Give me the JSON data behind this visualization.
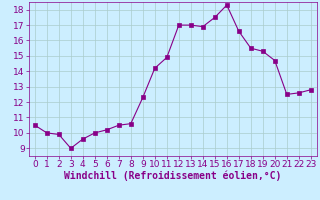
{
  "x": [
    0,
    1,
    2,
    3,
    4,
    5,
    6,
    7,
    8,
    9,
    10,
    11,
    12,
    13,
    14,
    15,
    16,
    17,
    18,
    19,
    20,
    21,
    22,
    23
  ],
  "y": [
    10.5,
    10.0,
    9.9,
    9.0,
    9.6,
    10.0,
    10.2,
    10.5,
    10.6,
    12.3,
    14.2,
    14.9,
    17.0,
    17.0,
    16.9,
    17.5,
    18.3,
    16.6,
    15.5,
    15.3,
    14.7,
    12.5,
    12.6,
    12.8
  ],
  "line_color": "#880088",
  "marker": "s",
  "marker_size": 2.5,
  "bg_color": "#cceeff",
  "grid_color": "#aacccc",
  "xlabel": "Windchill (Refroidissement éolien,°C)",
  "xlim": [
    -0.5,
    23.5
  ],
  "ylim": [
    8.5,
    18.5
  ],
  "yticks": [
    9,
    10,
    11,
    12,
    13,
    14,
    15,
    16,
    17,
    18
  ],
  "xticks": [
    0,
    1,
    2,
    3,
    4,
    5,
    6,
    7,
    8,
    9,
    10,
    11,
    12,
    13,
    14,
    15,
    16,
    17,
    18,
    19,
    20,
    21,
    22,
    23
  ],
  "tick_color": "#880088",
  "xlabel_fontsize": 7.0,
  "tick_fontsize": 6.5
}
